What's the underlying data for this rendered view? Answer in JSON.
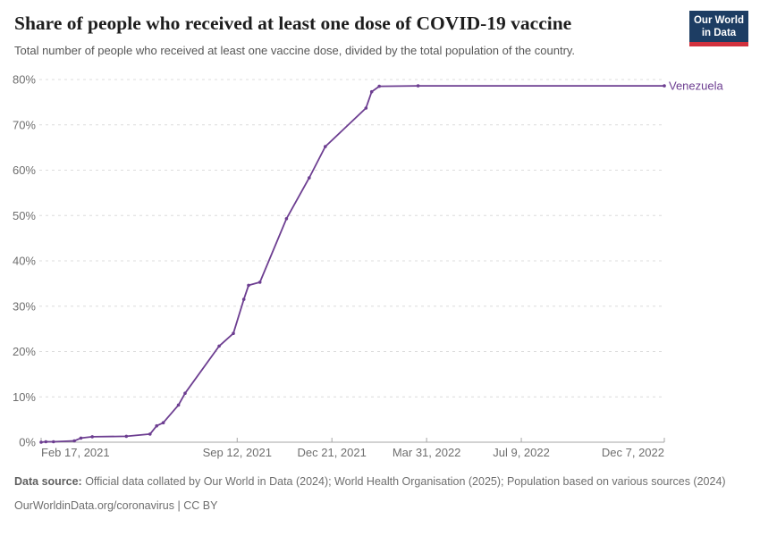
{
  "header": {
    "title": "Share of people who received at least one dose of COVID-19 vaccine",
    "subtitle": "Total number of people who received at least one vaccine dose, divided by the total population of the country."
  },
  "logo": {
    "line1": "Our World",
    "line2": "in Data"
  },
  "colors": {
    "series_purple": "#6D3E91",
    "grid": "#dcdcdc",
    "axis_line": "#a5a5a5",
    "axis_text": "#6e6e6e",
    "title_text": "#1d1d1d",
    "subtitle_text": "#565656",
    "footer_text": "#6e6e6e",
    "logo_bg": "#1d3d63",
    "logo_stripe": "#d1313d"
  },
  "chart_data": {
    "type": "line",
    "title": "Share of people who received at least one dose of COVID-19 vaccine",
    "xlabel": "",
    "ylabel": "",
    "grid": "dashed horizontal",
    "legend_position": "right-end-of-line",
    "ylim": [
      0,
      80
    ],
    "x_range_days": [
      0,
      658
    ],
    "y_ticks": [
      {
        "value": 0,
        "label": "0%"
      },
      {
        "value": 10,
        "label": "10%"
      },
      {
        "value": 20,
        "label": "20%"
      },
      {
        "value": 30,
        "label": "30%"
      },
      {
        "value": 40,
        "label": "40%"
      },
      {
        "value": 50,
        "label": "50%"
      },
      {
        "value": 60,
        "label": "60%"
      },
      {
        "value": 70,
        "label": "70%"
      },
      {
        "value": 80,
        "label": "80%"
      }
    ],
    "x_ticks": [
      {
        "day": 0,
        "label": "Feb 17, 2021"
      },
      {
        "day": 207,
        "label": "Sep 12, 2021"
      },
      {
        "day": 307,
        "label": "Dec 21, 2021"
      },
      {
        "day": 407,
        "label": "Mar 31, 2022"
      },
      {
        "day": 507,
        "label": "Jul 9, 2022"
      },
      {
        "day": 658,
        "label": "Dec 7, 2022"
      }
    ],
    "series": [
      {
        "name": "Venezuela",
        "color": "#6D3E91",
        "points": [
          {
            "date": "Feb 17, 2021",
            "day": 0,
            "value": 0
          },
          {
            "date": "Feb 22, 2021",
            "day": 5,
            "value": 0.1
          },
          {
            "date": "Mar 2, 2021",
            "day": 13,
            "value": 0.1
          },
          {
            "date": "Mar 24, 2021",
            "day": 35,
            "value": 0.3
          },
          {
            "date": "Mar 31, 2021",
            "day": 42,
            "value": 0.9
          },
          {
            "date": "Apr 12, 2021",
            "day": 54,
            "value": 1.2
          },
          {
            "date": "May 18, 2021",
            "day": 90,
            "value": 1.3
          },
          {
            "date": "Jun 12, 2021",
            "day": 115,
            "value": 1.8
          },
          {
            "date": "Jun 19, 2021",
            "day": 122,
            "value": 3.6
          },
          {
            "date": "Jun 26, 2021",
            "day": 129,
            "value": 4.3
          },
          {
            "date": "Jul 12, 2021",
            "day": 145,
            "value": 8.2
          },
          {
            "date": "Jul 19, 2021",
            "day": 152,
            "value": 10.8
          },
          {
            "date": "Aug 24, 2021",
            "day": 188,
            "value": 21.2
          },
          {
            "date": "Sep 8, 2021",
            "day": 203,
            "value": 24.0
          },
          {
            "date": "Sep 19, 2021",
            "day": 214,
            "value": 31.5
          },
          {
            "date": "Sep 24, 2021",
            "day": 219,
            "value": 34.6
          },
          {
            "date": "Oct 6, 2021",
            "day": 231,
            "value": 35.3
          },
          {
            "date": "Nov 3, 2021",
            "day": 259,
            "value": 49.3
          },
          {
            "date": "Nov 27, 2021",
            "day": 283,
            "value": 58.3
          },
          {
            "date": "Dec 14, 2021",
            "day": 300,
            "value": 65.2
          },
          {
            "date": "Jan 26, 2022",
            "day": 343,
            "value": 73.7
          },
          {
            "date": "Feb 1, 2022",
            "day": 349,
            "value": 77.3
          },
          {
            "date": "Feb 9, 2022",
            "day": 357,
            "value": 78.5
          },
          {
            "date": "Mar 22, 2022",
            "day": 398,
            "value": 78.6
          },
          {
            "date": "Dec 7, 2022",
            "day": 658,
            "value": 78.6
          }
        ]
      }
    ]
  },
  "footer": {
    "source_label": "Data source:",
    "source_text": " Official data collated by Our World in Data (2024); World Health Organisation (2025); Population based on various sources (2024)",
    "link_text": "OurWorldinData.org/coronavirus | CC BY"
  }
}
